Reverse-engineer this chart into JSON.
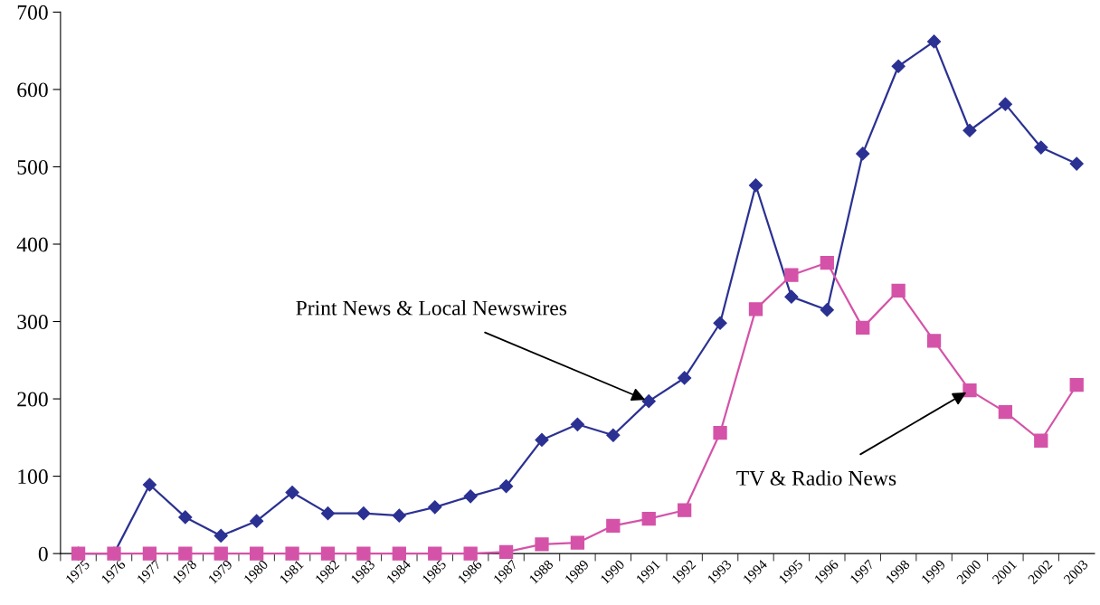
{
  "chart_data": {
    "type": "line",
    "categories": [
      "1975",
      "1976",
      "1977",
      "1978",
      "1979",
      "1980",
      "1981",
      "1982",
      "1983",
      "1984",
      "1985",
      "1986",
      "1987",
      "1988",
      "1989",
      "1990",
      "1991",
      "1992",
      "1993",
      "1994",
      "1995",
      "1996",
      "1997",
      "1998",
      "1999",
      "2000",
      "2001",
      "2002",
      "2003"
    ],
    "series": [
      {
        "color": "#2b3192",
        "marker": "diamond",
        "values": [
          0,
          0,
          89,
          47,
          23,
          42,
          79,
          52,
          52,
          49,
          60,
          74,
          87,
          147,
          167,
          153,
          197,
          227,
          298,
          476,
          332,
          315,
          517,
          630,
          662,
          547,
          581,
          525,
          504
        ]
      },
      {
        "color": "#d453a8",
        "marker": "square",
        "values": [
          0,
          0,
          0,
          0,
          0,
          0,
          0,
          0,
          0,
          0,
          0,
          0,
          2,
          12,
          14,
          36,
          45,
          56,
          156,
          316,
          360,
          376,
          292,
          340,
          275,
          211,
          183,
          146,
          218
        ]
      }
    ],
    "annotations": [
      {
        "text": "Print News & Local Newswires",
        "x": "1991",
        "y": 197
      },
      {
        "text": "TV & Radio News",
        "x": "2000",
        "y": 211
      }
    ],
    "ylim": [
      0,
      700
    ],
    "yticks": [
      0,
      100,
      200,
      300,
      400,
      500,
      600,
      700
    ],
    "grid": false,
    "legend": false
  }
}
